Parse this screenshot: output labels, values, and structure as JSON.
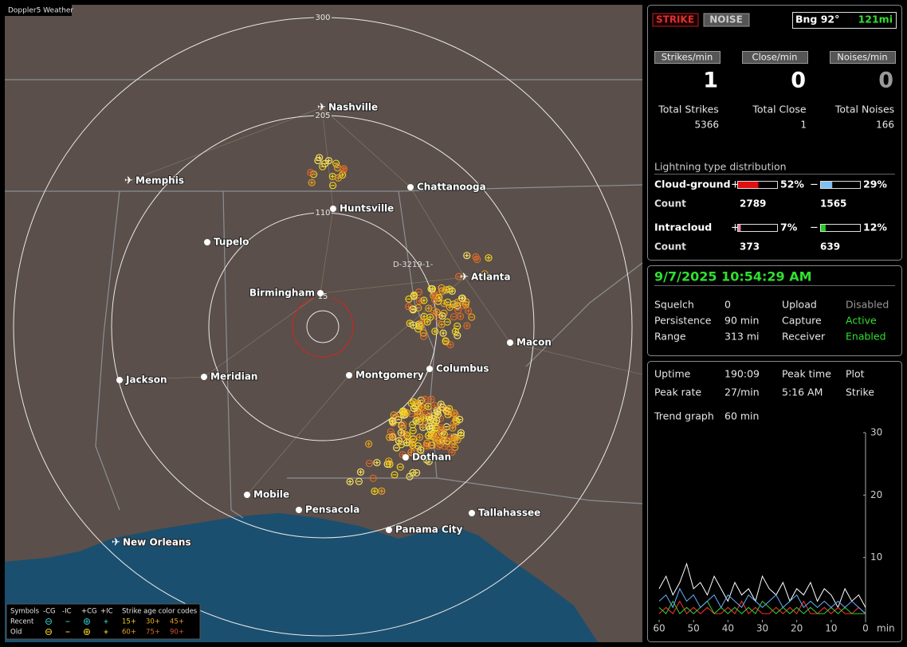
{
  "map": {
    "title": "Doppler5 Weather",
    "range_rings": [
      "300",
      "205",
      "110",
      "15"
    ],
    "annotation": "D-3219-1-",
    "cities": [
      "Nashville",
      "Memphis",
      "Chattanooga",
      "Huntsville",
      "Tupelo",
      "Atlanta",
      "Birmingham",
      "Macon",
      "Jackson",
      "Meridian",
      "Montgomery",
      "Columbus",
      "Dothan",
      "Mobile",
      "Pensacola",
      "Tallahassee",
      "Panama City",
      "New Orleans"
    ]
  },
  "legend": {
    "symbols": "Symbols",
    "columns": [
      "-CG",
      "-IC",
      "+CG",
      "+IC"
    ],
    "age_title": "Strike age color codes",
    "rows": [
      "Recent",
      "Old"
    ],
    "ages": [
      [
        "15+",
        "30+",
        "45+"
      ],
      [
        "60+",
        "75+",
        "90+"
      ]
    ]
  },
  "status": {
    "buttons": [
      "STRIKE",
      "NOISE"
    ],
    "bearing": "Bng 92°",
    "distance": "121mi",
    "rate_labels": [
      "Strikes/min",
      "Close/min",
      "Noises/min"
    ],
    "rate_values": [
      1,
      0,
      0
    ],
    "total_labels": [
      "Total Strikes",
      "Total Close",
      "Total Noises"
    ],
    "total_values": [
      5366,
      1,
      166
    ],
    "distribution": {
      "title": "Lightning type distribution",
      "signs": [
        "+",
        "−"
      ],
      "count_label": "Count",
      "rows": [
        {
          "name": "Cloud-ground",
          "pos": {
            "value": 52,
            "label": "52%"
          },
          "neg": {
            "value": 29,
            "label": "29%"
          },
          "counts": [
            2789,
            1565
          ]
        },
        {
          "name": "Intracloud",
          "pos": {
            "value": 7,
            "label": "7%"
          },
          "neg": {
            "value": 12,
            "label": "12%"
          },
          "counts": [
            373,
            639
          ]
        }
      ]
    }
  },
  "settings": {
    "datetime": "9/7/2025 10:54:29 AM",
    "rows": [
      [
        "Squelch",
        "0",
        "Upload",
        "Disabled"
      ],
      [
        "Persistence",
        "90 min",
        "Capture",
        "Active"
      ],
      [
        "Range",
        "313 mi",
        "Receiver",
        "Enabled"
      ]
    ]
  },
  "stats": {
    "rows": [
      [
        "Uptime",
        "190:09",
        "Peak time",
        "Plot"
      ],
      [
        "Peak rate",
        "27/min",
        "5:16 AM",
        "Strike"
      ]
    ],
    "trend_label": "Trend graph",
    "trend_span": "60 min",
    "chart_data": {
      "type": "line",
      "x": [
        60,
        58,
        56,
        54,
        52,
        50,
        48,
        46,
        44,
        42,
        40,
        38,
        36,
        34,
        32,
        30,
        28,
        26,
        24,
        22,
        20,
        18,
        16,
        14,
        12,
        10,
        8,
        6,
        4,
        2,
        0
      ],
      "xlim": [
        60,
        0
      ],
      "xticks": [
        60,
        50,
        40,
        30,
        20,
        10,
        0
      ],
      "xlabel": "min",
      "ylim": [
        0,
        30
      ],
      "yticks": [
        10,
        20,
        30
      ],
      "series": [
        {
          "color": "#ffffff",
          "values": [
            5,
            7,
            4,
            6,
            9,
            5,
            6,
            4,
            7,
            5,
            3,
            6,
            4,
            5,
            3,
            7,
            5,
            4,
            6,
            3,
            5,
            4,
            6,
            3,
            5,
            4,
            2,
            5,
            3,
            4,
            2
          ]
        },
        {
          "color": "#ff3030",
          "values": [
            1,
            2,
            1,
            3,
            1,
            2,
            1,
            2,
            1,
            1,
            2,
            1,
            3,
            1,
            2,
            1,
            1,
            2,
            1,
            2,
            1,
            3,
            1,
            1,
            2,
            1,
            2,
            1,
            1,
            2,
            1
          ]
        },
        {
          "color": "#30d030",
          "values": [
            2,
            1,
            3,
            1,
            2,
            1,
            2,
            3,
            1,
            2,
            1,
            2,
            1,
            2,
            1,
            3,
            2,
            1,
            2,
            1,
            2,
            1,
            2,
            1,
            1,
            2,
            1,
            2,
            1,
            1,
            1
          ]
        },
        {
          "color": "#6ab0ff",
          "values": [
            3,
            4,
            2,
            5,
            3,
            4,
            2,
            3,
            4,
            2,
            4,
            3,
            2,
            4,
            3,
            2,
            3,
            4,
            2,
            3,
            4,
            2,
            3,
            2,
            3,
            2,
            3,
            2,
            3,
            2,
            1
          ]
        }
      ]
    }
  }
}
